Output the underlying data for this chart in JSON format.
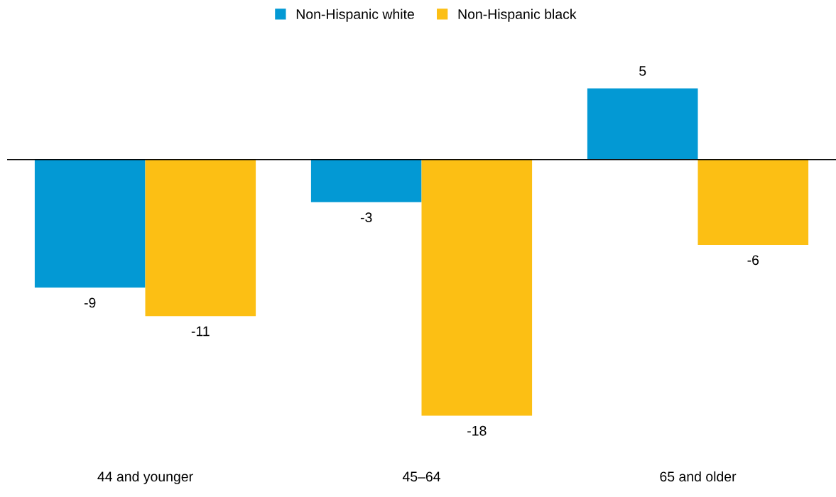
{
  "chart_data": {
    "type": "bar",
    "categories": [
      "44 and younger",
      "45–64",
      "65 and older"
    ],
    "series": [
      {
        "name": "Non-Hispanic white",
        "color": "#0399d4",
        "values": [
          -9,
          -3,
          5
        ]
      },
      {
        "name": "Non-Hispanic black",
        "color": "#fcbf14",
        "values": [
          -11,
          -18,
          -6
        ]
      }
    ],
    "tick_labels": "x",
    "data_labels": true,
    "grid": false,
    "legend": "top"
  }
}
